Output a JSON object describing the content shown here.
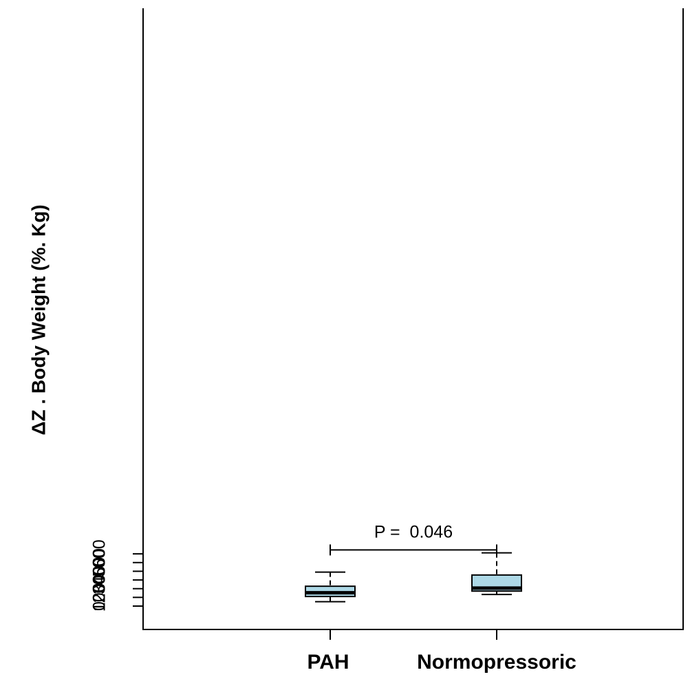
{
  "chart_data": {
    "type": "boxplot",
    "ylabel": "ΔZ . Body Weight (%. Kg)",
    "ylim": [
      0,
      650
    ],
    "yticks": [
      0,
      100,
      200,
      300,
      400,
      500,
      600
    ],
    "categories": [
      "PAH",
      "Normopressoric"
    ],
    "series": [
      {
        "min": 50,
        "q1": 110,
        "median": 153,
        "q3": 228,
        "max": 390
      },
      {
        "min": 133,
        "q1": 172,
        "median": 207,
        "q3": 357,
        "max": 612
      }
    ],
    "box_color": "#add8e6",
    "annotation": {
      "text": "P =  0.046",
      "from": 0,
      "to": 1,
      "y": 645
    },
    "grid": false,
    "legend": "none"
  }
}
